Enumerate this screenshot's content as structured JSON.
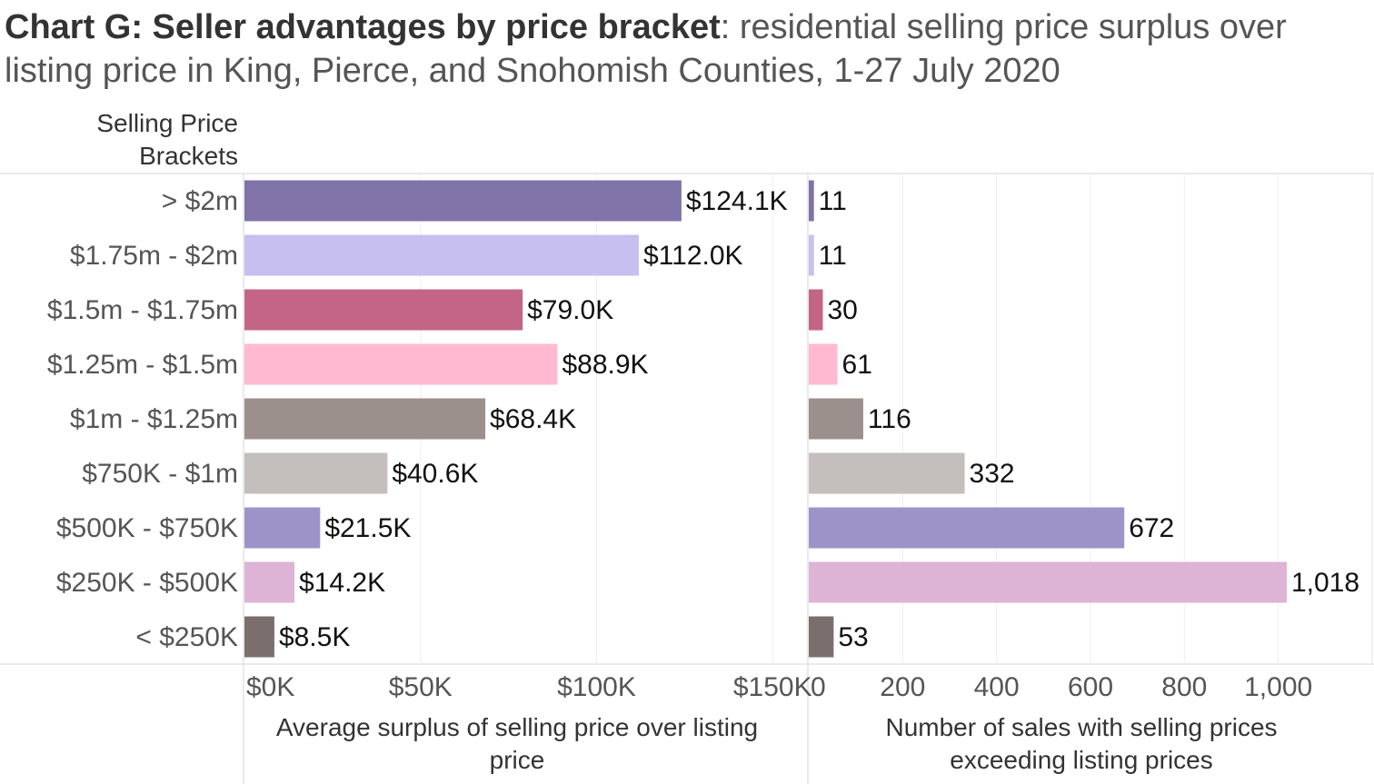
{
  "title": {
    "bold": "Chart G: Seller advantages by price bracket",
    "rest": ": residential selling price surplus over listing price in King, Pierce, and Snohomish Counties, 1-27 July 2020"
  },
  "row_header": [
    "Selling Price",
    "Brackets"
  ],
  "chart_data": [
    {
      "type": "bar",
      "orientation": "horizontal",
      "categories": [
        "> $2m",
        "$1.75m - $2m",
        "$1.5m - $1.75m",
        "$1.25m - $1.5m",
        "$1m - $1.25m",
        "$750K - $1m",
        "$500K - $750K",
        "$250K - $500K",
        "< $250K"
      ],
      "values": [
        124.1,
        112.0,
        79.0,
        88.9,
        68.4,
        40.6,
        21.5,
        14.2,
        8.5
      ],
      "data_labels": [
        "$124.1K",
        "$112.0K",
        "$79.0K",
        "$88.9K",
        "$68.4K",
        "$40.6K",
        "$21.5K",
        "$14.2K",
        "$8.5K"
      ],
      "colors": [
        "#8073a8",
        "#c6bff0",
        "#c46486",
        "#ffbad2",
        "#9c908c",
        "#c4bebc",
        "#9e93c9",
        "#ddb4d5",
        "#7b6f6d"
      ],
      "xlim": [
        0,
        160
      ],
      "xticks": [
        0,
        50,
        100,
        150
      ],
      "xtick_labels": [
        "$0K",
        "$50K",
        "$100K",
        "$150K"
      ],
      "xlabel": [
        "Average surplus of selling price over listing",
        "price"
      ],
      "grid": true
    },
    {
      "type": "bar",
      "orientation": "horizontal",
      "categories": [
        "> $2m",
        "$1.75m - $2m",
        "$1.5m - $1.75m",
        "$1.25m - $1.5m",
        "$1m - $1.25m",
        "$750K - $1m",
        "$500K - $750K",
        "$250K - $500K",
        "< $250K"
      ],
      "values": [
        11,
        11,
        30,
        61,
        116,
        332,
        672,
        1018,
        53
      ],
      "data_labels": [
        "11",
        "11",
        "30",
        "61",
        "116",
        "332",
        "672",
        "1,018",
        "53"
      ],
      "colors": [
        "#8073a8",
        "#c6bff0",
        "#c46486",
        "#ffbad2",
        "#9c908c",
        "#c4bebc",
        "#9e93c9",
        "#ddb4d5",
        "#7b6f6d"
      ],
      "xlim": [
        0,
        1200
      ],
      "xticks": [
        0,
        200,
        400,
        600,
        800,
        1000
      ],
      "xtick_labels": [
        "0",
        "200",
        "400",
        "600",
        "800",
        "1,000"
      ],
      "xlabel": [
        "Number of sales with selling prices",
        "exceeding listing prices"
      ],
      "grid": true
    }
  ]
}
